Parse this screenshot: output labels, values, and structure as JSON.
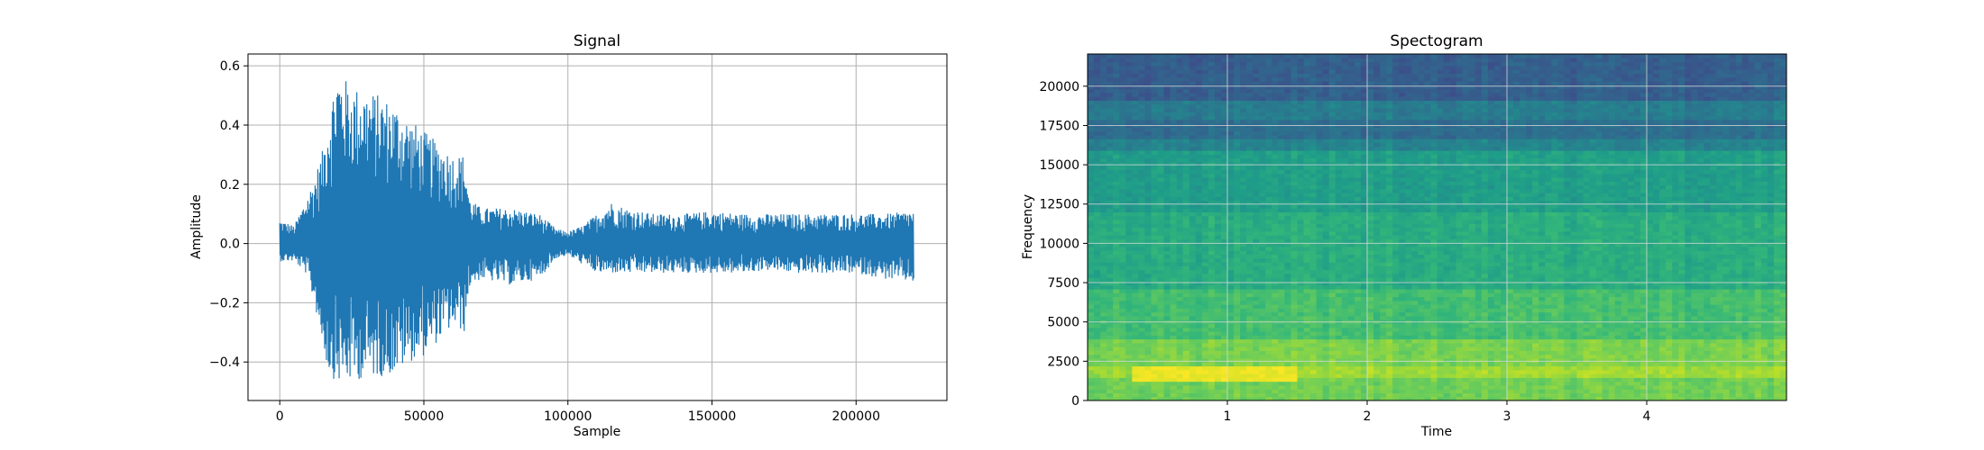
{
  "chart_data": [
    {
      "type": "line",
      "title": "Signal",
      "xlabel": "Sample",
      "ylabel": "Amplitude",
      "xlim": [
        -11025,
        231525
      ],
      "ylim": [
        -0.53,
        0.64
      ],
      "xticks": [
        0,
        50000,
        100000,
        150000,
        200000
      ],
      "xtick_labels": [
        "0",
        "50000",
        "100000",
        "150000",
        "200000"
      ],
      "yticks": [
        -0.4,
        -0.2,
        0.0,
        0.2,
        0.4,
        0.6
      ],
      "ytick_labels": [
        "−0.4",
        "−0.2",
        "0.0",
        "0.2",
        "0.4",
        "0.6"
      ],
      "grid": true,
      "color": "#1f77b4",
      "series": [
        {
          "envelope_x": [
            0,
            5000,
            9000,
            12000,
            15000,
            17000,
            20000,
            25000,
            30000,
            35000,
            40000,
            45000,
            50000,
            55000,
            60000,
            64000,
            66000,
            70000,
            80000,
            90000,
            96000,
            100000,
            105000,
            110000,
            115000,
            120000,
            130000,
            140000,
            150000,
            160000,
            170000,
            180000,
            190000,
            200000,
            210000,
            220000
          ],
          "envelope_max": [
            0.08,
            0.06,
            0.15,
            0.22,
            0.32,
            0.45,
            0.59,
            0.53,
            0.52,
            0.5,
            0.47,
            0.42,
            0.38,
            0.34,
            0.3,
            0.3,
            0.15,
            0.12,
            0.12,
            0.1,
            0.05,
            0.04,
            0.06,
            0.1,
            0.14,
            0.12,
            0.1,
            0.1,
            0.11,
            0.1,
            0.1,
            0.1,
            0.1,
            0.1,
            0.1,
            0.11
          ],
          "envelope_min": [
            -0.06,
            -0.06,
            -0.1,
            -0.2,
            -0.35,
            -0.44,
            -0.47,
            -0.47,
            -0.45,
            -0.45,
            -0.44,
            -0.4,
            -0.38,
            -0.33,
            -0.28,
            -0.3,
            -0.14,
            -0.12,
            -0.14,
            -0.12,
            -0.05,
            -0.04,
            -0.07,
            -0.1,
            -0.1,
            -0.1,
            -0.1,
            -0.1,
            -0.1,
            -0.1,
            -0.09,
            -0.1,
            -0.1,
            -0.1,
            -0.12,
            -0.13
          ]
        }
      ]
    },
    {
      "type": "heatmap",
      "title": "Spectogram",
      "xlabel": "Time",
      "ylabel": "Frequency",
      "xlim": [
        0,
        5.0
      ],
      "ylim": [
        0,
        22050
      ],
      "xticks": [
        1,
        2,
        3,
        4
      ],
      "xtick_labels": [
        "1",
        "2",
        "3",
        "4"
      ],
      "yticks": [
        0,
        2500,
        5000,
        7500,
        10000,
        12500,
        15000,
        17500,
        20000
      ],
      "ytick_labels": [
        "0",
        "2500",
        "5000",
        "7500",
        "10000",
        "12500",
        "15000",
        "17500",
        "20000"
      ],
      "grid": true,
      "colormap": "viridis",
      "bands": [
        {
          "fmin": 0,
          "fmax": 1500,
          "intensity": 0.78
        },
        {
          "fmin": 1500,
          "fmax": 2200,
          "intensity": 0.86
        },
        {
          "fmin": 2200,
          "fmax": 4000,
          "intensity": 0.8
        },
        {
          "fmin": 4000,
          "fmax": 7000,
          "intensity": 0.7
        },
        {
          "fmin": 7000,
          "fmax": 12000,
          "intensity": 0.62
        },
        {
          "fmin": 12000,
          "fmax": 16000,
          "intensity": 0.56
        },
        {
          "fmin": 16000,
          "fmax": 16600,
          "intensity": 0.45
        },
        {
          "fmin": 16600,
          "fmax": 17900,
          "intensity": 0.36
        },
        {
          "fmin": 17900,
          "fmax": 19000,
          "intensity": 0.42
        },
        {
          "fmin": 19000,
          "fmax": 22050,
          "intensity": 0.3
        }
      ],
      "hotspot": {
        "tmin": 0.3,
        "tmax": 1.5,
        "fmin": 1300,
        "fmax": 2300,
        "intensity": 0.97
      }
    }
  ]
}
